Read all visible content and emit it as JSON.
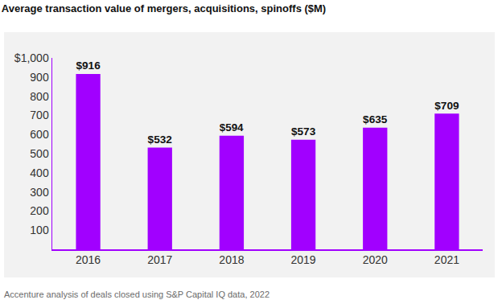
{
  "chart_data": {
    "type": "bar",
    "title": "Average transaction value of mergers, acquisitions, spinoffs ($M)",
    "categories": [
      "2016",
      "2017",
      "2018",
      "2019",
      "2020",
      "2021"
    ],
    "values": [
      916,
      532,
      594,
      573,
      635,
      709
    ],
    "value_labels": [
      "$916",
      "$532",
      "$594",
      "$573",
      "$635",
      "$709"
    ],
    "data_labels": true,
    "color": "#a100ff",
    "ylim": [
      0,
      1000
    ],
    "yticks": [
      100,
      200,
      300,
      400,
      500,
      600,
      700,
      800,
      900,
      {
        "value": 1000,
        "label": "$1,000"
      }
    ],
    "grid": false,
    "annotations": [
      "Accenture analysis of deals closed using S&P Capital IQ data, 2022"
    ]
  }
}
